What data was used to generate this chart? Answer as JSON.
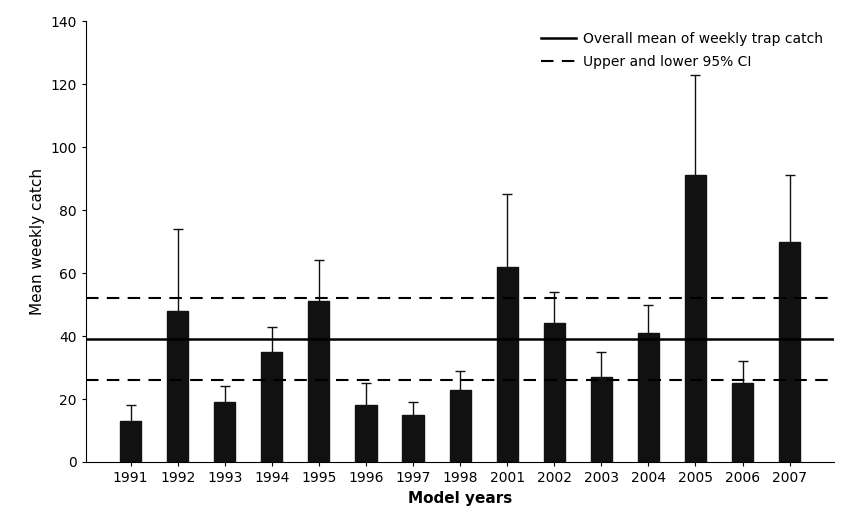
{
  "categories": [
    "1991",
    "1992",
    "1993",
    "1994",
    "1995",
    "1996",
    "1997",
    "1998",
    "2001",
    "2002",
    "2003",
    "2004",
    "2005",
    "2006",
    "2007"
  ],
  "values": [
    13,
    48,
    19,
    35,
    51,
    18,
    15,
    23,
    62,
    44,
    27,
    41,
    91,
    25,
    70
  ],
  "errors_upper": [
    5,
    26,
    5,
    8,
    13,
    7,
    4,
    6,
    23,
    10,
    8,
    9,
    32,
    7,
    21
  ],
  "errors_lower": [
    5,
    26,
    5,
    8,
    13,
    7,
    4,
    6,
    23,
    10,
    8,
    9,
    32,
    7,
    21
  ],
  "bar_color": "#111111",
  "error_color": "#111111",
  "mean_line": 39,
  "ci_upper": 52,
  "ci_lower": 26,
  "xlabel": "Model years",
  "ylabel": "Mean weekly catch",
  "ylim": [
    0,
    140
  ],
  "yticks": [
    0,
    20,
    40,
    60,
    80,
    100,
    120,
    140
  ],
  "legend_mean": "Overall mean of weekly trap catch",
  "legend_ci": "Upper and lower 95% CI",
  "background_color": "#ffffff",
  "mean_line_color": "#000000",
  "ci_line_color": "#000000",
  "label_fontsize": 11,
  "tick_fontsize": 10,
  "legend_fontsize": 10
}
